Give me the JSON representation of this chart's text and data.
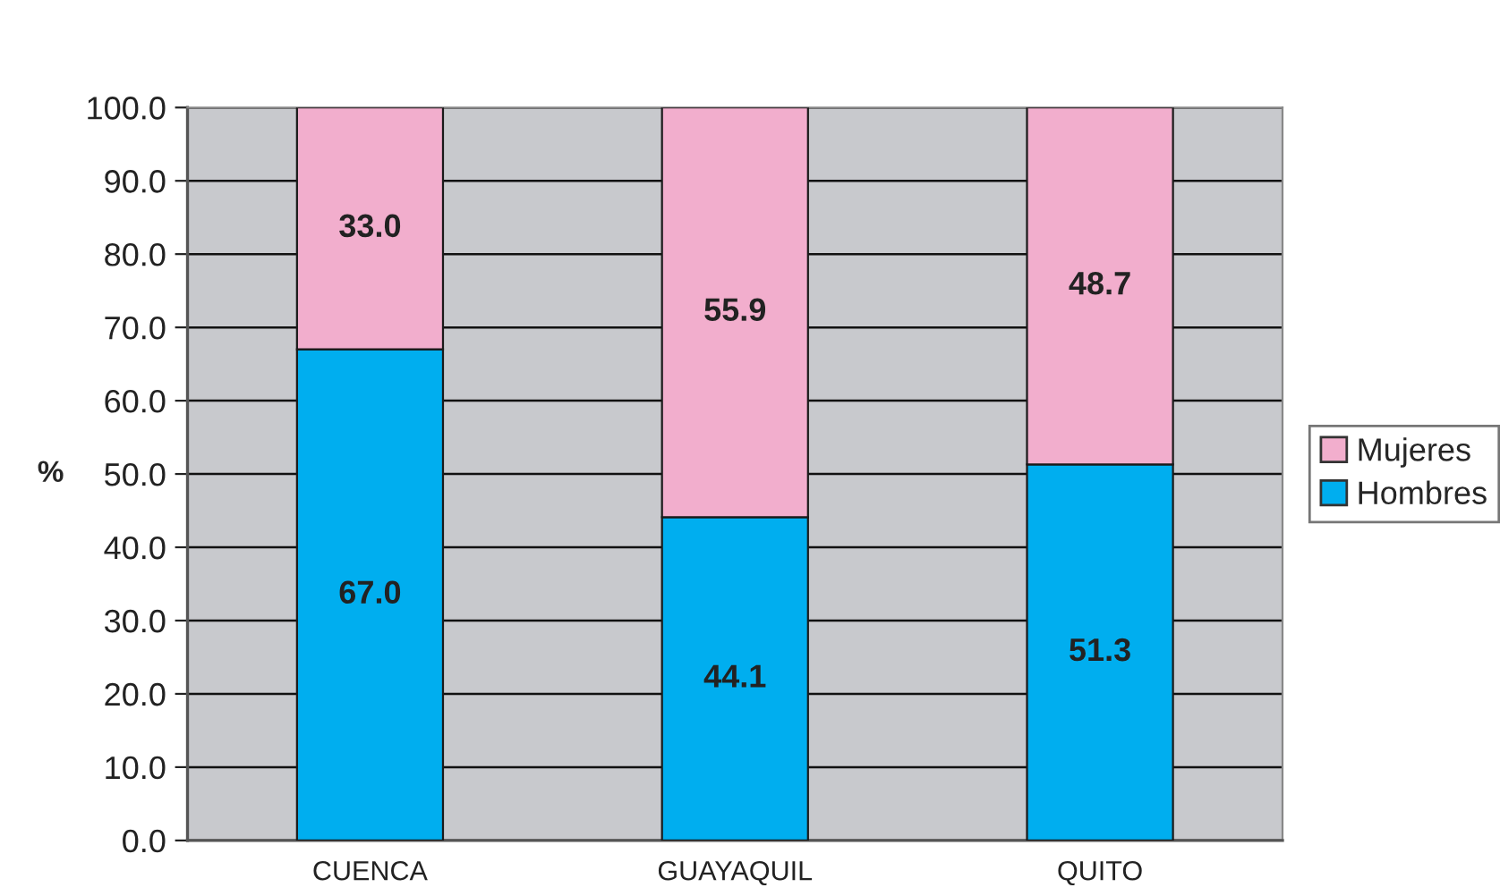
{
  "chart_data": {
    "type": "bar",
    "stacked": true,
    "ylabel": "%",
    "categories": [
      "CUENCA",
      "GUAYAQUIL",
      "QUITO"
    ],
    "series": [
      {
        "name": "Hombres",
        "color": "#00aeef",
        "values": [
          67.0,
          44.1,
          51.3
        ],
        "value_labels": [
          "67.0",
          "44.1",
          "51.3"
        ]
      },
      {
        "name": "Mujeres",
        "color": "#f2aecd",
        "values": [
          33.0,
          55.9,
          48.7
        ],
        "value_labels": [
          "33.0",
          "55.9",
          "48.7"
        ]
      }
    ],
    "ylim": [
      0,
      100
    ],
    "yticks": [
      {
        "value": 0,
        "label": "0.0"
      },
      {
        "value": 10,
        "label": "10.0"
      },
      {
        "value": 20,
        "label": "20.0"
      },
      {
        "value": 30,
        "label": "30.0"
      },
      {
        "value": 40,
        "label": "40.0"
      },
      {
        "value": 50,
        "label": "50.0"
      },
      {
        "value": 60,
        "label": "60.0"
      },
      {
        "value": 70,
        "label": "70.0"
      },
      {
        "value": 80,
        "label": "80.0"
      },
      {
        "value": 90,
        "label": "90.0"
      },
      {
        "value": 100,
        "label": "100.0"
      }
    ],
    "grid": "y",
    "legend": "right"
  }
}
